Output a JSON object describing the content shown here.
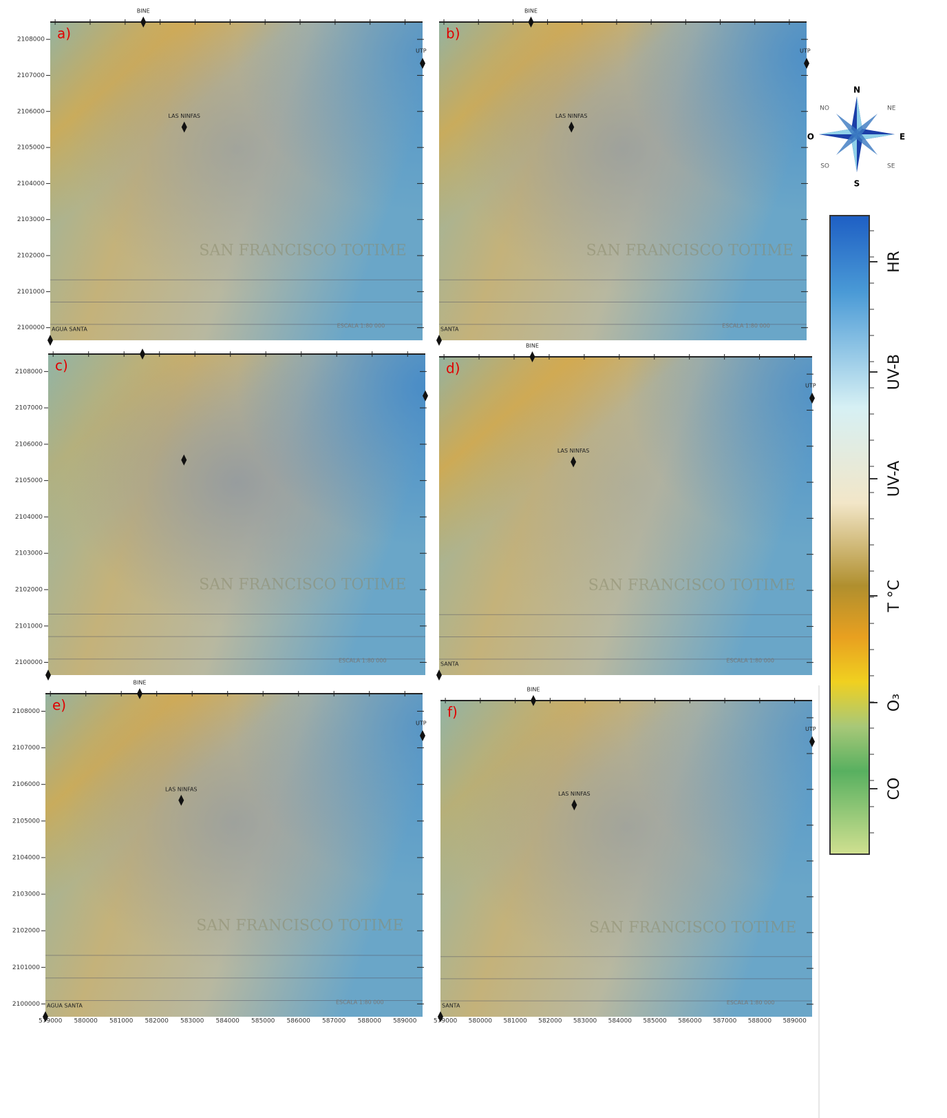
{
  "axes": {
    "xlim": [
      578860,
      589500
    ],
    "ylim": [
      2099650,
      2108480
    ],
    "xticks": [
      579000,
      580000,
      581000,
      582000,
      583000,
      584000,
      585000,
      586000,
      587000,
      588000,
      589000
    ],
    "yticks": [
      2100000,
      2101000,
      2102000,
      2103000,
      2104000,
      2105000,
      2106000,
      2107000,
      2108000
    ]
  },
  "panels": [
    {
      "label": "a)",
      "places": [
        "BINE",
        "UTP",
        "LAS NINFAS",
        "AGUA SANTA"
      ],
      "town": "SAN FRANCISCO TOTIME",
      "scale": "ESCALA 1:80 000"
    },
    {
      "label": "b)",
      "places": [
        "BINE",
        "UTP",
        "LAS NINFAS",
        "SANTA"
      ],
      "town": "SAN FRANCISCO TOTIME",
      "scale": "ESCALA 1:80 000"
    },
    {
      "label": "c)",
      "places": [
        null,
        null,
        null,
        null
      ],
      "town": "SAN FRANCISCO TOTIME",
      "scale": "ESCALA 1:80 000"
    },
    {
      "label": "d)",
      "places": [
        "BINE",
        "UTP",
        "LAS NINFAS",
        "SANTA"
      ],
      "town": "SAN FRANCISCO TOTIME",
      "scale": "ESCALA 1:80 000"
    },
    {
      "label": "e)",
      "places": [
        "BINE",
        "UTP",
        "LAS NINFAS",
        "AGUA SANTA"
      ],
      "town": "SAN FRANCISCO TOTIME",
      "scale": "ESCALA 1:80 000"
    },
    {
      "label": "f)",
      "places": [
        "BINE",
        "UTP",
        "LAS NINFAS",
        "SANTA"
      ],
      "town": "SAN FRANCISCO TOTIME",
      "scale": "ESCALA 1:80 000"
    }
  ],
  "colorbar": {
    "labels": [
      "HR",
      "UV-B",
      "UV-A",
      "T °C",
      "O₃",
      "CO"
    ]
  },
  "compass": {
    "N": "N",
    "NE": "NE",
    "E": "E",
    "SE": "SE",
    "S": "S",
    "SO": "SO",
    "O": "O",
    "NO": "NO"
  }
}
